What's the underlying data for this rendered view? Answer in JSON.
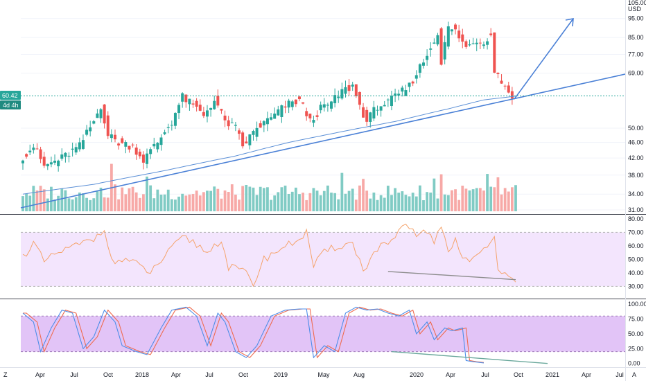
{
  "header": {
    "price_top_label": "105.00",
    "currency": "USD"
  },
  "price_badge": "60.42",
  "countdown_badge": "4d 4h",
  "colors": {
    "up": "#26a69a",
    "down": "#ef5350",
    "vol_up": "#80cbc4",
    "vol_down": "#f7a9a7",
    "trend": "#4a80d6",
    "ma": "#5b8fd6",
    "rsi_line": "#f5a36c",
    "rsi_band": "#f3e5fd",
    "stoch_k": "#4d8ee8",
    "stoch_d": "#ef6b4f",
    "stoch_band": "#e2c4f7",
    "div_line": "#8c8c8c",
    "stoch_div": "#6aa89c",
    "badge_price": "#26a69a",
    "badge_time": "#1f8a80"
  },
  "x_ticks": [
    "Apr",
    "Jul",
    "Oct",
    "2018",
    "Apr",
    "Jul",
    "Oct",
    "2019",
    "May",
    "Aug",
    "2020",
    "Apr",
    "Jul",
    "Oct",
    "2021",
    "Apr",
    "Jul"
  ],
  "price_ticks": [
    "95.00",
    "85.00",
    "77.00",
    "69.00",
    "50.00",
    "46.00",
    "42.00",
    "38.00",
    "34.00",
    "31.00"
  ],
  "rsi_ticks": [
    "80.00",
    "70.00",
    "60.00",
    "50.00",
    "40.00",
    "30.00"
  ],
  "stoch_ticks": [
    "100.00",
    "75.00",
    "50.00",
    "25.00",
    "0.00"
  ],
  "corner": {
    "left": "Z",
    "right": "A"
  },
  "chart_data": {
    "type": "candlestick",
    "scale": "log",
    "ylim_price": [
      30.5,
      105
    ],
    "rsi_band": [
      30,
      70
    ],
    "rsi_ylim": [
      22,
      82
    ],
    "stoch_band": [
      20,
      80
    ],
    "stoch_ylim": [
      -5,
      106
    ],
    "price_points": [
      [
        0,
        41.5
      ],
      [
        4,
        45
      ],
      [
        7,
        40
      ],
      [
        12,
        42
      ],
      [
        17,
        45
      ],
      [
        21,
        52
      ],
      [
        23,
        57
      ],
      [
        25,
        48
      ],
      [
        28,
        46
      ],
      [
        32,
        45
      ],
      [
        35,
        41.5
      ],
      [
        39,
        46
      ],
      [
        43,
        52
      ],
      [
        46,
        60
      ],
      [
        48,
        58
      ],
      [
        52,
        54
      ],
      [
        55,
        59
      ],
      [
        58,
        52
      ],
      [
        61,
        50
      ],
      [
        63,
        45
      ],
      [
        67,
        50
      ],
      [
        71,
        53
      ],
      [
        75,
        57
      ],
      [
        79,
        59
      ],
      [
        82,
        52
      ],
      [
        85,
        56
      ],
      [
        88,
        58
      ],
      [
        91,
        62
      ],
      [
        94,
        64
      ],
      [
        96,
        57
      ],
      [
        98,
        52
      ],
      [
        101,
        57
      ],
      [
        104,
        58
      ],
      [
        107,
        61
      ],
      [
        110,
        64
      ],
      [
        112,
        69
      ],
      [
        114,
        74
      ],
      [
        116,
        80
      ],
      [
        118,
        88
      ],
      [
        119,
        73
      ],
      [
        121,
        90
      ],
      [
        123,
        88
      ],
      [
        126,
        80
      ],
      [
        129,
        84
      ],
      [
        131,
        82
      ],
      [
        133,
        88
      ],
      [
        134,
        70
      ],
      [
        136,
        66
      ],
      [
        138,
        62
      ],
      [
        139,
        60.42
      ]
    ],
    "sma_points": [
      [
        0,
        34
      ],
      [
        20,
        36
      ],
      [
        40,
        39
      ],
      [
        60,
        42.5
      ],
      [
        75,
        46
      ],
      [
        90,
        49
      ],
      [
        105,
        52
      ],
      [
        120,
        56
      ],
      [
        130,
        59
      ],
      [
        139,
        60.3
      ]
    ],
    "volume_max": 100,
    "rsi_points": [
      [
        0,
        52
      ],
      [
        3,
        62
      ],
      [
        6,
        48
      ],
      [
        10,
        55
      ],
      [
        15,
        60
      ],
      [
        20,
        65
      ],
      [
        23,
        74
      ],
      [
        25,
        48
      ],
      [
        29,
        50
      ],
      [
        33,
        45
      ],
      [
        36,
        40
      ],
      [
        40,
        52
      ],
      [
        45,
        66
      ],
      [
        48,
        63
      ],
      [
        52,
        55
      ],
      [
        56,
        65
      ],
      [
        58,
        44
      ],
      [
        62,
        42
      ],
      [
        65,
        32
      ],
      [
        68,
        50
      ],
      [
        72,
        57
      ],
      [
        76,
        62
      ],
      [
        80,
        70
      ],
      [
        82,
        45
      ],
      [
        85,
        55
      ],
      [
        89,
        60
      ],
      [
        93,
        62
      ],
      [
        96,
        42
      ],
      [
        100,
        58
      ],
      [
        104,
        63
      ],
      [
        108,
        75
      ],
      [
        111,
        68
      ],
      [
        114,
        72
      ],
      [
        116,
        60
      ],
      [
        118,
        76
      ],
      [
        120,
        55
      ],
      [
        122,
        66
      ],
      [
        124,
        50
      ],
      [
        128,
        52
      ],
      [
        131,
        58
      ],
      [
        133,
        66
      ],
      [
        134,
        45
      ],
      [
        136,
        40
      ],
      [
        138,
        38
      ],
      [
        139,
        36
      ]
    ],
    "stoch_k_points": [
      [
        0,
        85
      ],
      [
        3,
        70
      ],
      [
        5,
        20
      ],
      [
        8,
        60
      ],
      [
        11,
        90
      ],
      [
        14,
        85
      ],
      [
        17,
        25
      ],
      [
        20,
        45
      ],
      [
        23,
        90
      ],
      [
        26,
        70
      ],
      [
        28,
        30
      ],
      [
        32,
        20
      ],
      [
        35,
        15
      ],
      [
        39,
        60
      ],
      [
        42,
        90
      ],
      [
        46,
        95
      ],
      [
        49,
        80
      ],
      [
        52,
        30
      ],
      [
        55,
        85
      ],
      [
        57,
        70
      ],
      [
        60,
        20
      ],
      [
        63,
        10
      ],
      [
        66,
        30
      ],
      [
        70,
        80
      ],
      [
        74,
        90
      ],
      [
        78,
        92
      ],
      [
        80,
        92
      ],
      [
        82,
        10
      ],
      [
        85,
        30
      ],
      [
        88,
        20
      ],
      [
        91,
        85
      ],
      [
        94,
        95
      ],
      [
        97,
        90
      ],
      [
        100,
        92
      ],
      [
        103,
        85
      ],
      [
        106,
        80
      ],
      [
        109,
        90
      ],
      [
        111,
        50
      ],
      [
        114,
        70
      ],
      [
        116,
        40
      ],
      [
        119,
        60
      ],
      [
        121,
        55
      ],
      [
        124,
        60
      ],
      [
        125,
        5
      ],
      [
        127,
        3
      ],
      [
        130,
        1
      ]
    ],
    "div_lines": [
      {
        "panel": "rsi",
        "from": [
          103,
          41
        ],
        "to": [
          139,
          35
        ]
      },
      {
        "panel": "stoch",
        "from": [
          104,
          20
        ],
        "to": [
          148,
          0
        ]
      }
    ]
  }
}
